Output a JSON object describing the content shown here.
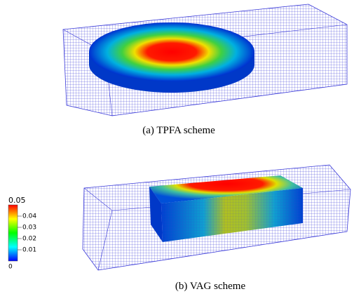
{
  "figures": [
    {
      "caption": "(a) TPFA scheme"
    },
    {
      "caption": "(b) VAG scheme"
    }
  ],
  "colorbar": {
    "lim": [
      0,
      0.05
    ],
    "ticks": [
      0,
      0.01,
      0.02,
      0.03,
      0.04,
      0.05
    ]
  }
}
